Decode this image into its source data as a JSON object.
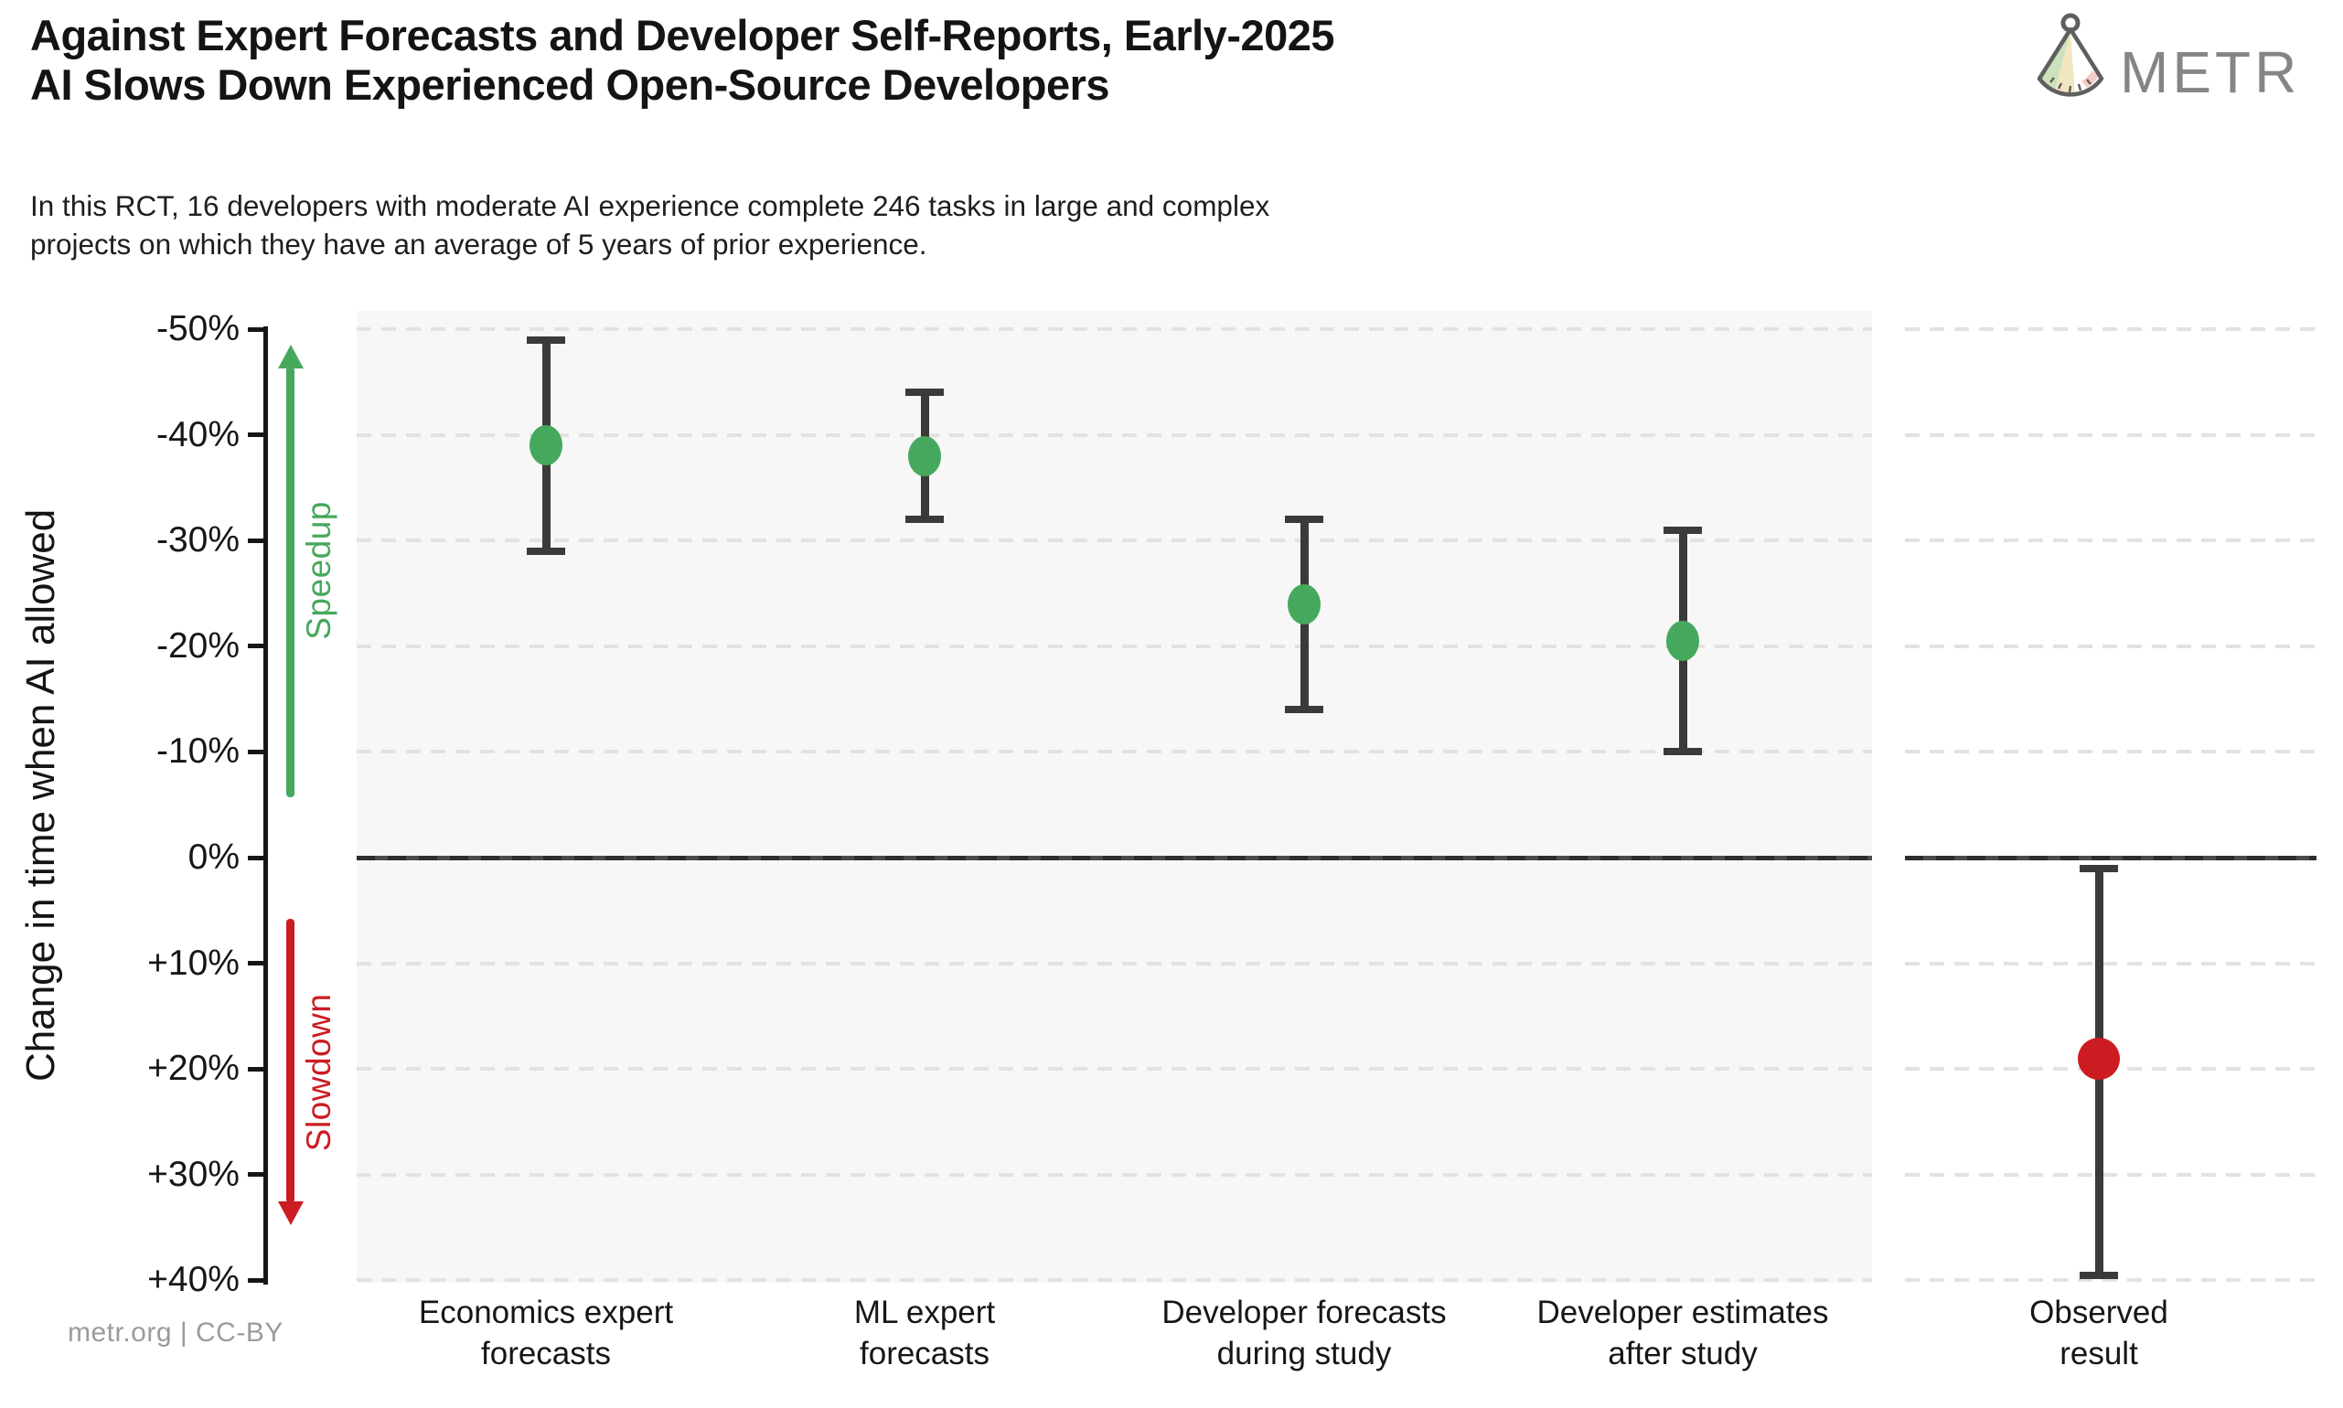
{
  "header": {
    "title": "Against Expert Forecasts and Developer Self-Reports, Early-2025\nAI Slows Down Experienced Open-Source Developers",
    "subtitle": "In this RCT, 16 developers with moderate AI experience complete 246 tasks in large and complex\nprojects on which they have an average of 5 years of prior experience.",
    "logo_text": "METR"
  },
  "footer": {
    "credit": "metr.org  |  CC-BY"
  },
  "colors": {
    "speedup_green": "#46a85c",
    "slowdown_red": "#cc1c22",
    "errorbar_gray": "#3a3a3a",
    "panel_bg": "#f7f7f7",
    "gridline": "#e2e2e2",
    "axis_black": "#161616",
    "muted_gray": "#9b9b9b",
    "logo_gray": "#858585"
  },
  "chart_data": {
    "type": "scatter",
    "title": "Against Expert Forecasts and Developer Self-Reports, Early-2025 AI Slows Down Experienced Open-Source Developers",
    "subtitle": "In this RCT, 16 developers with moderate AI experience complete 246 tasks in large and complex projects on which they have an average of 5 years of prior experience.",
    "ylabel": "Change in time when AI allowed",
    "units": "percent",
    "y_axis_note": "negative values (speedup) plotted upward, positive values (slowdown) downward",
    "ylim_top": -52,
    "ylim_bottom": 40.5,
    "grid": "dashed horizontal gridlines every 10%",
    "legend": "none",
    "zero_line": true,
    "y_ticks": [
      {
        "value": -50,
        "label": "-50%"
      },
      {
        "value": -40,
        "label": "-40%"
      },
      {
        "value": -30,
        "label": "-30%"
      },
      {
        "value": -20,
        "label": "-20%"
      },
      {
        "value": -10,
        "label": "-10%"
      },
      {
        "value": 0,
        "label": "0%"
      },
      {
        "value": 10,
        "label": "+10%"
      },
      {
        "value": 20,
        "label": "+20%"
      },
      {
        "value": 30,
        "label": "+30%"
      },
      {
        "value": 40,
        "label": "+40%"
      }
    ],
    "points": [
      {
        "id": "economics-expert-forecasts",
        "category": "Economics expert\nforecasts",
        "mean": -39,
        "ci_min": -49,
        "ci_max": -29,
        "color": "#46a85c",
        "marker": "ellipse",
        "panel": "main"
      },
      {
        "id": "ml-expert-forecasts",
        "category": "ML expert\nforecasts",
        "mean": -38,
        "ci_min": -44,
        "ci_max": -32,
        "color": "#46a85c",
        "marker": "ellipse",
        "panel": "main"
      },
      {
        "id": "developer-forecasts-during-study",
        "category": "Developer forecasts\nduring study",
        "mean": -24,
        "ci_min": -32,
        "ci_max": -14,
        "color": "#46a85c",
        "marker": "ellipse",
        "panel": "main"
      },
      {
        "id": "developer-estimates-after-study",
        "category": "Developer estimates\nafter study",
        "mean": -20.5,
        "ci_min": -31,
        "ci_max": -10,
        "color": "#46a85c",
        "marker": "ellipse",
        "panel": "main"
      },
      {
        "id": "observed-result",
        "category": "Observed\nresult",
        "mean": 19,
        "ci_min": 1,
        "ci_max": 39.5,
        "color": "#cc1c22",
        "marker": "circle",
        "panel": "observed"
      }
    ],
    "annotations": {
      "speedup": {
        "label": "Speedup",
        "direction": "up",
        "color": "#46a85c",
        "span_pct": [
          -48.5,
          -5.7
        ]
      },
      "slowdown": {
        "label": "Slowdown",
        "direction": "down",
        "color": "#cc1c22",
        "span_pct": [
          5.8,
          34.8
        ]
      }
    }
  }
}
